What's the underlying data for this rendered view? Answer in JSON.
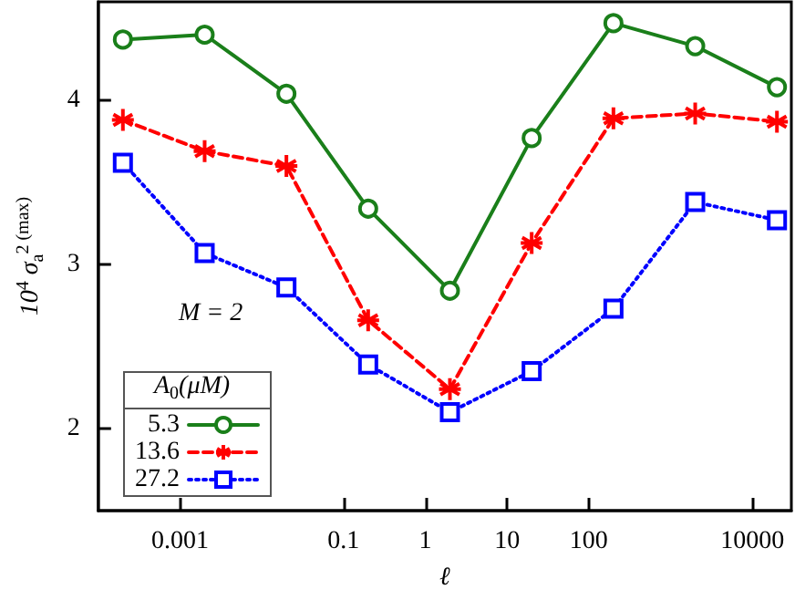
{
  "chart_data": {
    "type": "line",
    "xlabel": "ℓ",
    "ylabel": "10$^{4}$ σ$_{a}$$^{2 (max)}$",
    "legend_title": "A$_{0}$(μM)",
    "annotations": [
      "M = 2"
    ],
    "x": [
      0.0002,
      0.002,
      0.02,
      0.2,
      2,
      20,
      200,
      2000,
      20000
    ],
    "series": [
      {
        "name": "5.3",
        "color": "#1a7f1a",
        "marker": "circle",
        "line_style": "solid",
        "values": [
          4.37,
          4.4,
          4.04,
          3.34,
          2.84,
          3.77,
          4.47,
          4.33,
          4.08
        ]
      },
      {
        "name": "13.6",
        "color": "#ff0000",
        "marker": "cross",
        "line_style": "dashed",
        "values": [
          3.88,
          3.69,
          3.6,
          2.66,
          2.24,
          3.13,
          3.89,
          3.92,
          3.87
        ]
      },
      {
        "name": "27.2",
        "color": "#0000ff",
        "marker": "square",
        "line_style": "dotted",
        "values": [
          3.62,
          3.07,
          2.86,
          2.39,
          2.1,
          2.35,
          2.73,
          3.38,
          3.27
        ]
      }
    ],
    "log": "x",
    "xlim": [
      0.0001,
      30000
    ],
    "xticks": [
      0.001,
      0.1,
      1,
      10,
      100,
      10000
    ],
    "ylim": [
      1.5,
      4.6
    ],
    "yticks": [
      2,
      3,
      4
    ],
    "grid": false,
    "legend": "bottom left"
  }
}
